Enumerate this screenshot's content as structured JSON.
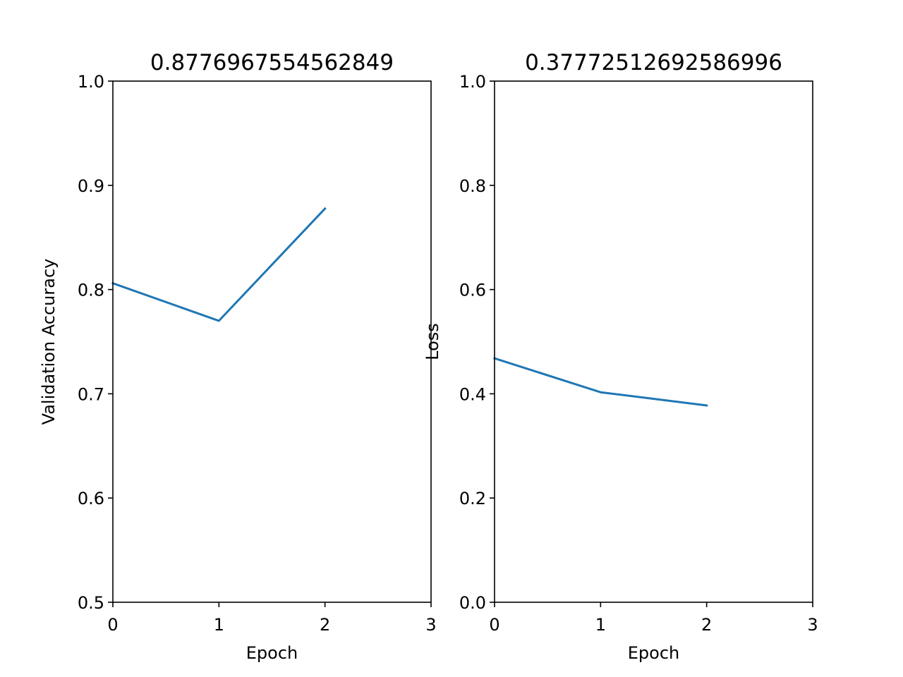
{
  "chart_data": [
    {
      "type": "line",
      "title": "0.8776967554562849",
      "xlabel": "Epoch",
      "ylabel": "Validation Accuracy",
      "xlim": [
        0,
        3
      ],
      "ylim": [
        0.5,
        1.0
      ],
      "xticks": [
        0,
        1,
        2,
        3
      ],
      "xtick_labels": [
        "0",
        "1",
        "2",
        "3"
      ],
      "yticks": [
        0.5,
        0.6,
        0.7,
        0.8,
        0.9,
        1.0
      ],
      "ytick_labels": [
        "0.5",
        "0.6",
        "0.7",
        "0.8",
        "0.9",
        "1.0"
      ],
      "grid": false,
      "series": [
        {
          "x": [
            0,
            1,
            2
          ],
          "values": [
            0.806,
            0.77,
            0.8777
          ],
          "color": "#1f77b4"
        }
      ]
    },
    {
      "type": "line",
      "title": "0.37772512692586996",
      "xlabel": "Epoch",
      "ylabel": "Loss",
      "xlim": [
        0,
        3
      ],
      "ylim": [
        0.0,
        1.0
      ],
      "xticks": [
        0,
        1,
        2,
        3
      ],
      "xtick_labels": [
        "0",
        "1",
        "2",
        "3"
      ],
      "yticks": [
        0.0,
        0.2,
        0.4,
        0.6,
        0.8,
        1.0
      ],
      "ytick_labels": [
        "0.0",
        "0.2",
        "0.4",
        "0.6",
        "0.8",
        "1.0"
      ],
      "grid": false,
      "series": [
        {
          "x": [
            0,
            1,
            2
          ],
          "values": [
            0.468,
            0.403,
            0.3777
          ],
          "color": "#1f77b4"
        }
      ]
    }
  ]
}
